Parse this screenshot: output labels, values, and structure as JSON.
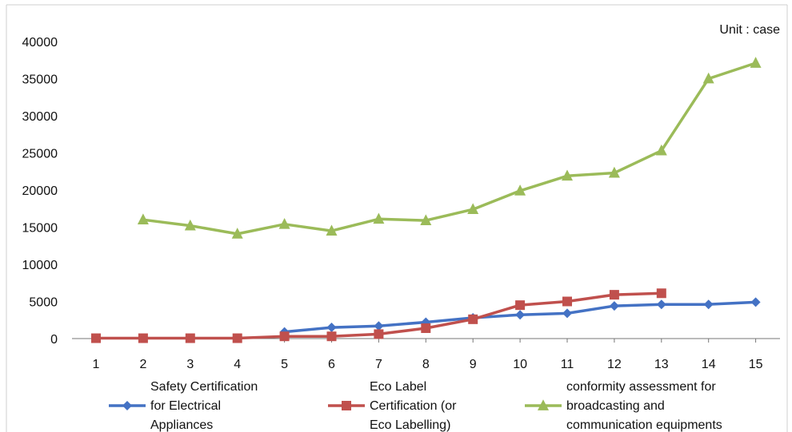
{
  "chart_data": {
    "type": "line",
    "unit_note": "Unit : case",
    "x": [
      1,
      2,
      3,
      4,
      5,
      6,
      7,
      8,
      9,
      10,
      11,
      12,
      13,
      14,
      15
    ],
    "x_ticks": [
      "1",
      "2",
      "3",
      "4",
      "5",
      "6",
      "7",
      "8",
      "9",
      "10",
      "11",
      "12",
      "13",
      "14",
      "15"
    ],
    "y_ticks": [
      "0",
      "5000",
      "10000",
      "15000",
      "20000",
      "25000",
      "30000",
      "35000",
      "40000"
    ],
    "ylim": [
      0,
      40000
    ],
    "grid": false,
    "legend_position": "bottom",
    "series": [
      {
        "name_lines": [
          "Safety Certification",
          "for Electrical",
          "Appliances"
        ],
        "color": "#4472C4",
        "marker": "diamond",
        "values": [
          null,
          null,
          null,
          null,
          900,
          1500,
          1700,
          2200,
          2800,
          3200,
          3400,
          4400,
          4600,
          4600,
          4900
        ]
      },
      {
        "name_lines": [
          "Eco Label",
          "Certification (or",
          "Eco Labelling)"
        ],
        "color": "#C0504D",
        "marker": "square",
        "values": [
          50,
          50,
          50,
          50,
          300,
          300,
          600,
          1400,
          2600,
          4500,
          5000,
          5900,
          6100,
          null,
          null
        ]
      },
      {
        "name_lines": [
          "conformity assessment for",
          "broadcasting and",
          "communication equipments"
        ],
        "color": "#9BBB59",
        "marker": "triangle",
        "values": [
          null,
          16000,
          15200,
          14100,
          15400,
          14500,
          16100,
          15900,
          17400,
          19900,
          21900,
          22300,
          25300,
          35000,
          37100
        ]
      }
    ]
  }
}
